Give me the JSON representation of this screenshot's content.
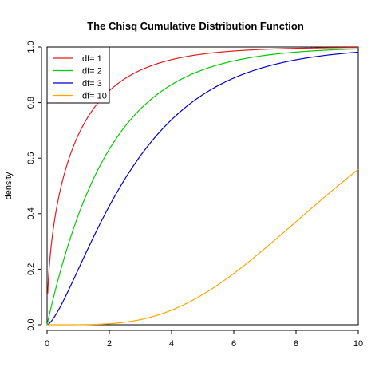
{
  "chart_data": {
    "type": "line",
    "title": "The Chisq Cumulative Distribution Function",
    "xlabel": "",
    "ylabel": "density",
    "xlim": [
      0,
      10
    ],
    "ylim": [
      0,
      1
    ],
    "x_ticks": [
      "0",
      "2",
      "4",
      "6",
      "8",
      "10"
    ],
    "y_ticks": [
      "0.0",
      "0.2",
      "0.4",
      "0.6",
      "0.8",
      "1.0"
    ],
    "legend_position": "top-left",
    "series": [
      {
        "name": "df= 1",
        "color": "#e41a1c",
        "df": 1,
        "x": [
          0.02,
          0.1,
          0.25,
          0.5,
          1,
          1.5,
          2,
          3,
          4,
          5,
          6,
          7,
          8,
          9,
          10
        ],
        "y": [
          0.112,
          0.248,
          0.383,
          0.52,
          0.683,
          0.779,
          0.843,
          0.917,
          0.954,
          0.975,
          0.986,
          0.992,
          0.995,
          0.997,
          0.998
        ]
      },
      {
        "name": "df= 2",
        "color": "#00cc00",
        "df": 2,
        "x": [
          0,
          0.5,
          1,
          1.5,
          2,
          3,
          4,
          5,
          6,
          7,
          8,
          9,
          10
        ],
        "y": [
          0,
          0.221,
          0.393,
          0.528,
          0.632,
          0.777,
          0.865,
          0.918,
          0.95,
          0.97,
          0.982,
          0.989,
          0.993
        ]
      },
      {
        "name": "df= 3",
        "color": "#0000cc",
        "df": 3,
        "x": [
          0,
          0.5,
          1,
          1.5,
          2,
          3,
          4,
          5,
          6,
          7,
          8,
          9,
          10
        ],
        "y": [
          0,
          0.081,
          0.199,
          0.318,
          0.428,
          0.608,
          0.739,
          0.828,
          0.888,
          0.928,
          0.954,
          0.971,
          0.981
        ]
      },
      {
        "name": "df= 10",
        "color": "#ffa500",
        "df": 10,
        "x": [
          0,
          1,
          2,
          3,
          4,
          5,
          6,
          7,
          8,
          9,
          10
        ],
        "y": [
          0,
          0.0002,
          0.004,
          0.019,
          0.053,
          0.109,
          0.185,
          0.275,
          0.371,
          0.468,
          0.56
        ]
      }
    ]
  }
}
